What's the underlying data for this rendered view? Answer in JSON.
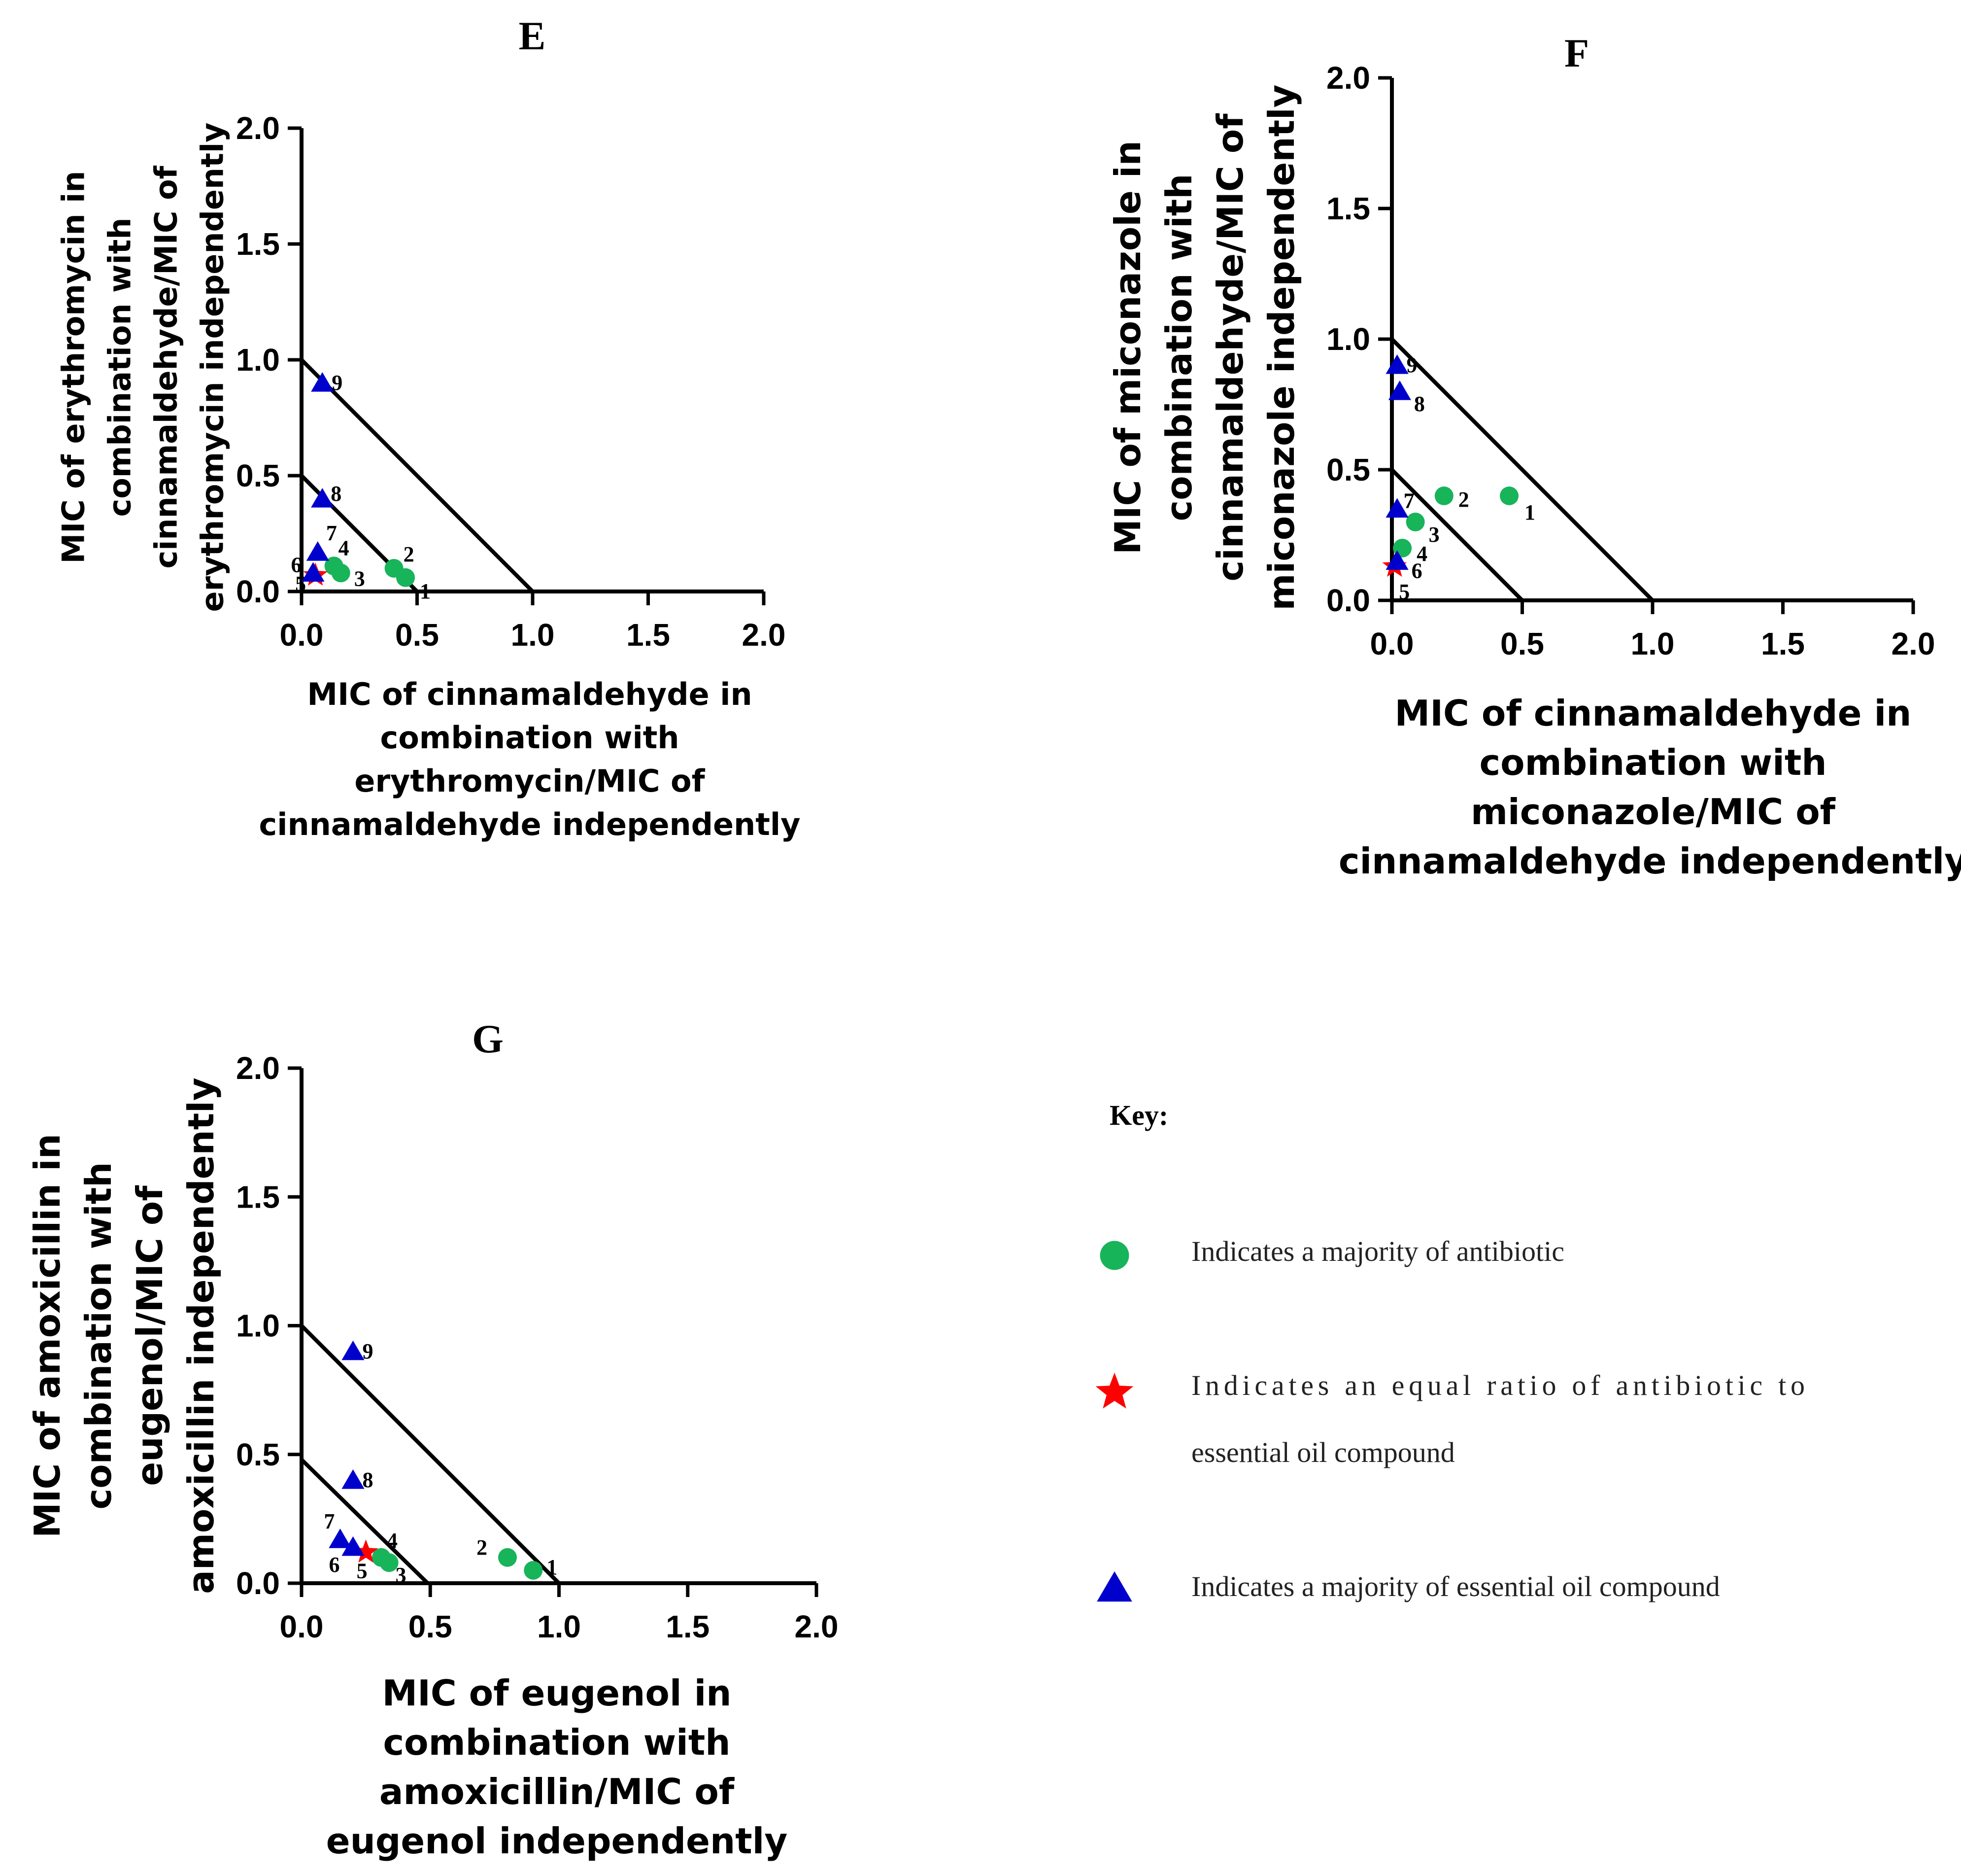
{
  "colors": {
    "antibiotic_majority": "#17b45a",
    "equal_ratio": "#ff0000",
    "oil_majority": "#0000cc",
    "axis": "#000000"
  },
  "chart_data": [
    {
      "type": "scatter",
      "panel": "E",
      "title": "E",
      "xlabel": [
        "MIC of cinnamaldehyde in",
        "combination with",
        "erythromycin/MIC of",
        "cinnamaldehyde independently"
      ],
      "ylabel": [
        "MIC of erythromycin in",
        "combination with",
        "cinnamaldehyde/MIC of",
        "erythromycin independently"
      ],
      "xlim": [
        0,
        2.0
      ],
      "ylim": [
        0,
        2.0
      ],
      "x_ticks": [
        "0.0",
        "0.5",
        "1.0",
        "1.5",
        "2.0"
      ],
      "y_ticks": [
        "0.0",
        "0.5",
        "1.0",
        "1.5",
        "2.0"
      ],
      "isobolograms": [
        [
          [
            0,
            1.0
          ],
          [
            1.0,
            0
          ]
        ],
        [
          [
            0,
            0.5
          ],
          [
            0.5,
            0
          ]
        ]
      ],
      "points": [
        {
          "label": "1",
          "x": 0.45,
          "y": 0.06,
          "kind": "antibiotic"
        },
        {
          "label": "2",
          "x": 0.4,
          "y": 0.1,
          "kind": "antibiotic"
        },
        {
          "label": "3",
          "x": 0.17,
          "y": 0.08,
          "kind": "antibiotic"
        },
        {
          "label": "4",
          "x": 0.14,
          "y": 0.11,
          "kind": "antibiotic"
        },
        {
          "label": "5",
          "x": 0.06,
          "y": 0.07,
          "kind": "equal"
        },
        {
          "label": "6",
          "x": 0.05,
          "y": 0.08,
          "kind": "oil"
        },
        {
          "label": "7",
          "x": 0.07,
          "y": 0.17,
          "kind": "oil"
        },
        {
          "label": "8",
          "x": 0.09,
          "y": 0.4,
          "kind": "oil"
        },
        {
          "label": "9",
          "x": 0.09,
          "y": 0.9,
          "kind": "oil"
        }
      ]
    },
    {
      "type": "scatter",
      "panel": "F",
      "title": "F",
      "xlabel": [
        "MIC of cinnamaldehyde in",
        "combination with",
        "miconazole/MIC of",
        "cinnamaldehyde independently"
      ],
      "ylabel": [
        "MIC of miconazole in",
        "combination with",
        "cinnamaldehyde/MIC of",
        "miconazole independently"
      ],
      "xlim": [
        0,
        2.0
      ],
      "ylim": [
        0,
        2.0
      ],
      "x_ticks": [
        "0.0",
        "0.5",
        "1.0",
        "1.5",
        "2.0"
      ],
      "y_ticks": [
        "0.0",
        "0.5",
        "1.0",
        "1.5",
        "2.0"
      ],
      "isobolograms": [
        [
          [
            0,
            1.0
          ],
          [
            1.0,
            0
          ]
        ],
        [
          [
            0,
            0.5
          ],
          [
            0.5,
            0
          ]
        ]
      ],
      "points": [
        {
          "label": "1",
          "x": 0.45,
          "y": 0.4,
          "kind": "antibiotic"
        },
        {
          "label": "2",
          "x": 0.2,
          "y": 0.4,
          "kind": "antibiotic"
        },
        {
          "label": "3",
          "x": 0.09,
          "y": 0.3,
          "kind": "antibiotic"
        },
        {
          "label": "4",
          "x": 0.04,
          "y": 0.2,
          "kind": "antibiotic"
        },
        {
          "label": "5",
          "x": 0.01,
          "y": 0.13,
          "kind": "equal"
        },
        {
          "label": "6",
          "x": 0.02,
          "y": 0.15,
          "kind": "oil"
        },
        {
          "label": "7",
          "x": 0.02,
          "y": 0.35,
          "kind": "oil"
        },
        {
          "label": "8",
          "x": 0.03,
          "y": 0.8,
          "kind": "oil"
        },
        {
          "label": "9",
          "x": 0.02,
          "y": 0.9,
          "kind": "oil"
        }
      ]
    },
    {
      "type": "scatter",
      "panel": "G",
      "title": "G",
      "xlabel": [
        "MIC of eugenol in",
        "combination with",
        "amoxicillin/MIC of",
        "eugenol independently"
      ],
      "ylabel": [
        "MIC of amoxicillin in",
        "combination with",
        "eugenol/MIC of",
        "amoxicillin independently"
      ],
      "xlim": [
        0,
        2.0
      ],
      "ylim": [
        0,
        2.0
      ],
      "x_ticks": [
        "0.0",
        "0.5",
        "1.0",
        "1.5",
        "2.0"
      ],
      "y_ticks": [
        "0.0",
        "0.5",
        "1.0",
        "1.5",
        "2.0"
      ],
      "isobolograms": [
        [
          [
            0,
            1.0
          ],
          [
            1.0,
            0
          ]
        ],
        [
          [
            0,
            0.48
          ],
          [
            0.49,
            0
          ]
        ]
      ],
      "points": [
        {
          "label": "1",
          "x": 0.9,
          "y": 0.05,
          "kind": "antibiotic"
        },
        {
          "label": "2",
          "x": 0.8,
          "y": 0.1,
          "kind": "antibiotic"
        },
        {
          "label": "3",
          "x": 0.34,
          "y": 0.08,
          "kind": "antibiotic"
        },
        {
          "label": "4",
          "x": 0.31,
          "y": 0.1,
          "kind": "antibiotic"
        },
        {
          "label": "5",
          "x": 0.25,
          "y": 0.12,
          "kind": "equal"
        },
        {
          "label": "6",
          "x": 0.2,
          "y": 0.14,
          "kind": "oil"
        },
        {
          "label": "7",
          "x": 0.15,
          "y": 0.17,
          "kind": "oil"
        },
        {
          "label": "8",
          "x": 0.2,
          "y": 0.4,
          "kind": "oil"
        },
        {
          "label": "9",
          "x": 0.2,
          "y": 0.9,
          "kind": "oil"
        }
      ]
    }
  ],
  "legend": {
    "title": "Key:",
    "items": [
      {
        "kind": "antibiotic",
        "icon": "circle-icon",
        "text": [
          "Indicates a majority of antibiotic"
        ]
      },
      {
        "kind": "equal",
        "icon": "star-icon",
        "text": [
          "Indicates  an  equal  ratio  of  antibiotic  to",
          "essential oil compound"
        ]
      },
      {
        "kind": "oil",
        "icon": "triangle-icon",
        "text": [
          "Indicates a majority of essential oil compound"
        ]
      }
    ]
  }
}
